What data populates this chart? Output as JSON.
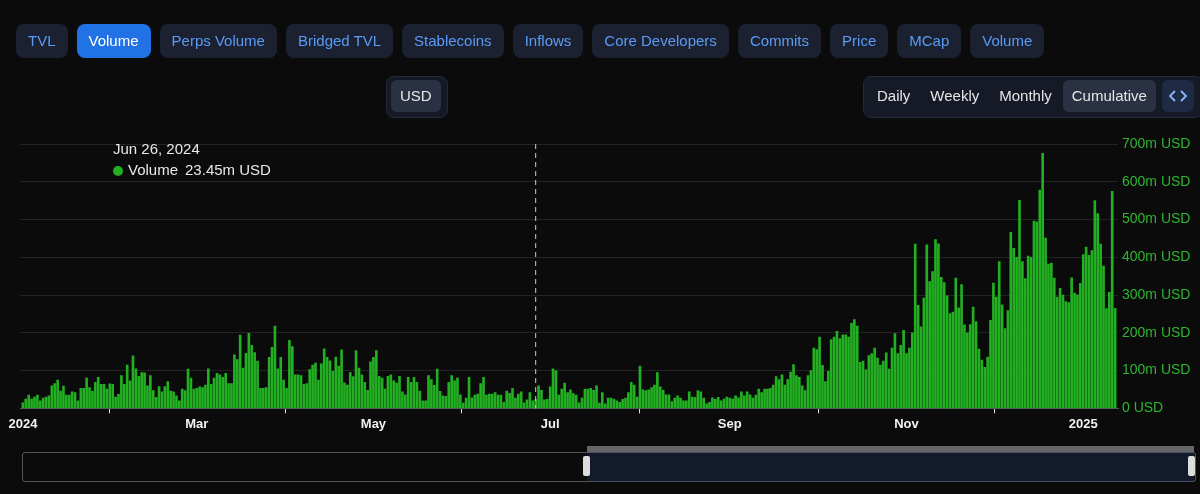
{
  "chart_data": {
    "type": "bar",
    "series": [
      {
        "name": "Volume",
        "color": "#22b022",
        "x": [
          "2024-01-01",
          "2024-01-02",
          "2024-01-03",
          "2024-01-04",
          "2024-01-05",
          "2024-01-06",
          "2024-01-07",
          "2024-01-08",
          "2024-01-09",
          "2024-01-10",
          "2024-01-11",
          "2024-01-12",
          "2024-01-13",
          "2024-01-14",
          "2024-01-15",
          "2024-01-16",
          "2024-01-17",
          "2024-01-18",
          "2024-01-19",
          "2024-01-20",
          "2024-01-21",
          "2024-01-22",
          "2024-01-23",
          "2024-01-24",
          "2024-01-25",
          "2024-01-26",
          "2024-01-27",
          "2024-01-28",
          "2024-01-29",
          "2024-01-30",
          "2024-01-31",
          "2024-02-01",
          "2024-02-02",
          "2024-02-03",
          "2024-02-04",
          "2024-02-05",
          "2024-02-06",
          "2024-02-07",
          "2024-02-08",
          "2024-02-09",
          "2024-02-10",
          "2024-02-11",
          "2024-02-12",
          "2024-02-13",
          "2024-02-14",
          "2024-02-15",
          "2024-02-16",
          "2024-02-17",
          "2024-02-18",
          "2024-02-19",
          "2024-02-20",
          "2024-02-21",
          "2024-02-22",
          "2024-02-23",
          "2024-02-24",
          "2024-02-25",
          "2024-02-26",
          "2024-02-27",
          "2024-02-28",
          "2024-02-29",
          "2024-03-01",
          "2024-03-02",
          "2024-03-03",
          "2024-03-04",
          "2024-03-05",
          "2024-03-06",
          "2024-03-07",
          "2024-03-08",
          "2024-03-09",
          "2024-03-10",
          "2024-03-11",
          "2024-03-12",
          "2024-03-13",
          "2024-03-14",
          "2024-03-15",
          "2024-03-16",
          "2024-03-17",
          "2024-03-18",
          "2024-03-19",
          "2024-03-20",
          "2024-03-21",
          "2024-03-22",
          "2024-03-23",
          "2024-03-24",
          "2024-03-25",
          "2024-03-26",
          "2024-03-27",
          "2024-03-28",
          "2024-03-29",
          "2024-03-30",
          "2024-03-31",
          "2024-04-01",
          "2024-04-02",
          "2024-04-03",
          "2024-04-04",
          "2024-04-05",
          "2024-04-06",
          "2024-04-07",
          "2024-04-08",
          "2024-04-09",
          "2024-04-10",
          "2024-04-11",
          "2024-04-12",
          "2024-04-13",
          "2024-04-14",
          "2024-04-15",
          "2024-04-16",
          "2024-04-17",
          "2024-04-18",
          "2024-04-19",
          "2024-04-20",
          "2024-04-21",
          "2024-04-22",
          "2024-04-23",
          "2024-04-24",
          "2024-04-25",
          "2024-04-26",
          "2024-04-27",
          "2024-04-28",
          "2024-04-29",
          "2024-04-30",
          "2024-05-01",
          "2024-05-02",
          "2024-05-03",
          "2024-05-04",
          "2024-05-05",
          "2024-05-06",
          "2024-05-07",
          "2024-05-08",
          "2024-05-09",
          "2024-05-10",
          "2024-05-11",
          "2024-05-12",
          "2024-05-13",
          "2024-05-14",
          "2024-05-15",
          "2024-05-16",
          "2024-05-17",
          "2024-05-18",
          "2024-05-19",
          "2024-05-20",
          "2024-05-21",
          "2024-05-22",
          "2024-05-23",
          "2024-05-24",
          "2024-05-25",
          "2024-05-26",
          "2024-05-27",
          "2024-05-28",
          "2024-05-29",
          "2024-05-30",
          "2024-05-31",
          "2024-06-01",
          "2024-06-02",
          "2024-06-03",
          "2024-06-04",
          "2024-06-05",
          "2024-06-06",
          "2024-06-07",
          "2024-06-08",
          "2024-06-09",
          "2024-06-10",
          "2024-06-11",
          "2024-06-12",
          "2024-06-13",
          "2024-06-14",
          "2024-06-15",
          "2024-06-16",
          "2024-06-17",
          "2024-06-18",
          "2024-06-19",
          "2024-06-20",
          "2024-06-21",
          "2024-06-22",
          "2024-06-23",
          "2024-06-24",
          "2024-06-25",
          "2024-06-26",
          "2024-06-27",
          "2024-06-28",
          "2024-06-29",
          "2024-06-30",
          "2024-07-01",
          "2024-07-02",
          "2024-07-03",
          "2024-07-04",
          "2024-07-05",
          "2024-07-06",
          "2024-07-07",
          "2024-07-08",
          "2024-07-09",
          "2024-07-10",
          "2024-07-11",
          "2024-07-12",
          "2024-07-13",
          "2024-07-14",
          "2024-07-15",
          "2024-07-16",
          "2024-07-17",
          "2024-07-18",
          "2024-07-19",
          "2024-07-20",
          "2024-07-21",
          "2024-07-22",
          "2024-07-23",
          "2024-07-24",
          "2024-07-25",
          "2024-07-26",
          "2024-07-27",
          "2024-07-28",
          "2024-07-29",
          "2024-07-30",
          "2024-07-31",
          "2024-08-01",
          "2024-08-02",
          "2024-08-03",
          "2024-08-04",
          "2024-08-05",
          "2024-08-06",
          "2024-08-07",
          "2024-08-08",
          "2024-08-09",
          "2024-08-10",
          "2024-08-11",
          "2024-08-12",
          "2024-08-13",
          "2024-08-14",
          "2024-08-15",
          "2024-08-16",
          "2024-08-17",
          "2024-08-18",
          "2024-08-19",
          "2024-08-20",
          "2024-08-21",
          "2024-08-22",
          "2024-08-23",
          "2024-08-24",
          "2024-08-25",
          "2024-08-26",
          "2024-08-27",
          "2024-08-28",
          "2024-08-29",
          "2024-08-30",
          "2024-08-31",
          "2024-09-01",
          "2024-09-02",
          "2024-09-03",
          "2024-09-04",
          "2024-09-05",
          "2024-09-06",
          "2024-09-07",
          "2024-09-08",
          "2024-09-09",
          "2024-09-10",
          "2024-09-11",
          "2024-09-12",
          "2024-09-13",
          "2024-09-14",
          "2024-09-15",
          "2024-09-16",
          "2024-09-17",
          "2024-09-18",
          "2024-09-19",
          "2024-09-20",
          "2024-09-21",
          "2024-09-22",
          "2024-09-23",
          "2024-09-24",
          "2024-09-25",
          "2024-09-26",
          "2024-09-27",
          "2024-09-28",
          "2024-09-29",
          "2024-09-30",
          "2024-10-01",
          "2024-10-02",
          "2024-10-03",
          "2024-10-04",
          "2024-10-05",
          "2024-10-06",
          "2024-10-07",
          "2024-10-08",
          "2024-10-09",
          "2024-10-10",
          "2024-10-11",
          "2024-10-12",
          "2024-10-13",
          "2024-10-14",
          "2024-10-15",
          "2024-10-16",
          "2024-10-17",
          "2024-10-18",
          "2024-10-19",
          "2024-10-20",
          "2024-10-21",
          "2024-10-22",
          "2024-10-23",
          "2024-10-24",
          "2024-10-25",
          "2024-10-26",
          "2024-10-27",
          "2024-10-28",
          "2024-10-29",
          "2024-10-30",
          "2024-10-31",
          "2024-11-01",
          "2024-11-02",
          "2024-11-03",
          "2024-11-04",
          "2024-11-05",
          "2024-11-06",
          "2024-11-07",
          "2024-11-08",
          "2024-11-09",
          "2024-11-10",
          "2024-11-11",
          "2024-11-12",
          "2024-11-13",
          "2024-11-14",
          "2024-11-15",
          "2024-11-16",
          "2024-11-17",
          "2024-11-18",
          "2024-11-19",
          "2024-11-20",
          "2024-11-21",
          "2024-11-22",
          "2024-11-23",
          "2024-11-24",
          "2024-11-25",
          "2024-11-26",
          "2024-11-27",
          "2024-11-28",
          "2024-11-29",
          "2024-11-30",
          "2024-12-01",
          "2024-12-02",
          "2024-12-03",
          "2024-12-04",
          "2024-12-05",
          "2024-12-06",
          "2024-12-07",
          "2024-12-08",
          "2024-12-09",
          "2024-12-10",
          "2024-12-11",
          "2024-12-12",
          "2024-12-13",
          "2024-12-14",
          "2024-12-15",
          "2024-12-16",
          "2024-12-17",
          "2024-12-18",
          "2024-12-19",
          "2024-12-20",
          "2024-12-21",
          "2024-12-22",
          "2024-12-23",
          "2024-12-24",
          "2024-12-25",
          "2024-12-26",
          "2024-12-27",
          "2024-12-28",
          "2024-12-29",
          "2024-12-30",
          "2024-12-31",
          "2025-01-01",
          "2025-01-02",
          "2025-01-03",
          "2025-01-04",
          "2025-01-05",
          "2025-01-06",
          "2025-01-07",
          "2025-01-08",
          "2025-01-09",
          "2025-01-10",
          "2025-01-11",
          "2025-01-12"
        ],
        "values": [
          15,
          25,
          35,
          25,
          30,
          35,
          20,
          27,
          30,
          33,
          60,
          66,
          75,
          46,
          59,
          35,
          35,
          44,
          42,
          20,
          53,
          53,
          80,
          55,
          45,
          69,
          82,
          64,
          64,
          51,
          65,
          64,
          30,
          37,
          87,
          64,
          115,
          73,
          139,
          105,
          85,
          95,
          94,
          60,
          87,
          47,
          29,
          58,
          44,
          58,
          71,
          46,
          44,
          33,
          20,
          51,
          47,
          104,
          80,
          51,
          53,
          57,
          55,
          62,
          105,
          64,
          80,
          93,
          89,
          82,
          93,
          66,
          66,
          142,
          129,
          194,
          107,
          146,
          199,
          167,
          148,
          125,
          53,
          53,
          55,
          135,
          162,
          218,
          105,
          135,
          75,
          53,
          180,
          164,
          89,
          89,
          87,
          64,
          66,
          103,
          115,
          120,
          75,
          118,
          158,
          135,
          126,
          98,
          136,
          112,
          155,
          68,
          62,
          95,
          84,
          153,
          107,
          89,
          69,
          48,
          123,
          135,
          153,
          85,
          80,
          51,
          85,
          89,
          73,
          67,
          85,
          44,
          36,
          82,
          69,
          82,
          69,
          46,
          20,
          20,
          87,
          76,
          61,
          104,
          45,
          33,
          32,
          69,
          87,
          73,
          80,
          36,
          14,
          27,
          82,
          28,
          35,
          38,
          66,
          82,
          35,
          38,
          38,
          42,
          35,
          35,
          16,
          46,
          40,
          53,
          27,
          38,
          44,
          15,
          23,
          42,
          20,
          23.45,
          60,
          48,
          23,
          24,
          57,
          105,
          100,
          35,
          51,
          67,
          42,
          49,
          39,
          35,
          15,
          27,
          51,
          51,
          53,
          48,
          60,
          14,
          42,
          12,
          27,
          27,
          25,
          20,
          16,
          24,
          27,
          42,
          69,
          62,
          30,
          112,
          49,
          47,
          49,
          55,
          62,
          95,
          57,
          48,
          36,
          36,
          18,
          27,
          33,
          27,
          20,
          20,
          44,
          30,
          29,
          47,
          44,
          27,
          12,
          16,
          28,
          24,
          29,
          20,
          25,
          30,
          27,
          25,
          33,
          28,
          44,
          33,
          44,
          36,
          27,
          35,
          51,
          42,
          51,
          51,
          53,
          62,
          84,
          76,
          89,
          62,
          76,
          96,
          116,
          87,
          82,
          60,
          47,
          87,
          100,
          160,
          156,
          189,
          114,
          71,
          98,
          182,
          189,
          204,
          185,
          195,
          195,
          189,
          225,
          235,
          218,
          122,
          125,
          102,
          140,
          145,
          160,
          133,
          115,
          125,
          147,
          104,
          160,
          198,
          145,
          167,
          207,
          145,
          160,
          200,
          435,
          273,
          216,
          292,
          433,
          336,
          362,
          447,
          436,
          347,
          333,
          298,
          251,
          255,
          345,
          266,
          328,
          221,
          200,
          222,
          268,
          230,
          157,
          128,
          109,
          136,
          233,
          332,
          295,
          389,
          274,
          211,
          259,
          466,
          424,
          400,
          551,
          389,
          344,
          403,
          400,
          496,
          494,
          578,
          675,
          451,
          382,
          385,
          345,
          295,
          318,
          300,
          283,
          280,
          346,
          305,
          301,
          331,
          407,
          427,
          405,
          418,
          550,
          516,
          435,
          377,
          264,
          307,
          575,
          265
        ]
      }
    ],
    "xlim": [
      "2023-12-31",
      "2025-01-13"
    ],
    "xticks": [
      {
        "value": "2024-01-01",
        "label": "2024"
      },
      {
        "value": "2024-03-01",
        "label": "Mar"
      },
      {
        "value": "2024-05-01",
        "label": "May"
      },
      {
        "value": "2024-07-01",
        "label": "Jul"
      },
      {
        "value": "2024-09-01",
        "label": "Sep"
      },
      {
        "value": "2024-11-01",
        "label": "Nov"
      },
      {
        "value": "2025-01-01",
        "label": "2025"
      }
    ],
    "ylim": [
      0,
      700
    ],
    "yticks": [
      {
        "value": 0,
        "label": "0 USD"
      },
      {
        "value": 100,
        "label": "100m USD"
      },
      {
        "value": 200,
        "label": "200m USD"
      },
      {
        "value": 300,
        "label": "300m USD"
      },
      {
        "value": 400,
        "label": "400m USD"
      },
      {
        "value": 500,
        "label": "500m USD"
      },
      {
        "value": 600,
        "label": "600m USD"
      },
      {
        "value": 700,
        "label": "700m USD"
      }
    ],
    "grid": "y",
    "legend": "top left",
    "ref_lines": [
      {
        "axis": "x",
        "value": "2024-06-26",
        "label": "Jun 26, 2024",
        "color": "#cccccc",
        "line_style": "dashed"
      }
    ],
    "annotations": [
      "23.45m USD",
      "TVL",
      "Volume",
      "Perps Volume",
      "Bridged TVL",
      "Stablecoins",
      "Inflows",
      "Core Developers",
      "Commits",
      "Price",
      "MCap",
      "Volume",
      "USD",
      "Daily",
      "Weekly",
      "Monthly",
      "Cumulative"
    ]
  }
}
